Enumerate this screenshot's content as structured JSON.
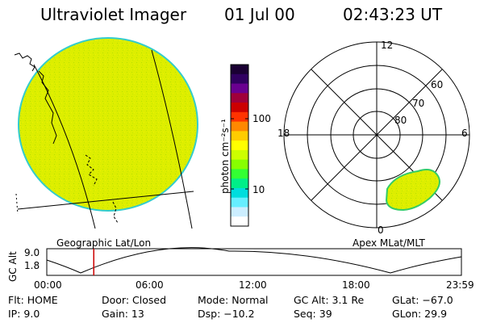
{
  "header": {
    "title": "Ultraviolet Imager",
    "date": "01 Jul 00",
    "time": "02:43:23 UT"
  },
  "colors": {
    "fill": "#ddee00",
    "fill_edge": "#33cccc",
    "aurora_edge": "#33cc66"
  },
  "colorbar": {
    "label": "photon cm⁻²s⁻¹",
    "scale": "log",
    "ticks": [
      "100",
      "10"
    ],
    "colors": [
      "#1a0033",
      "#300060",
      "#6a0090",
      "#a0003a",
      "#cc0000",
      "#ff3300",
      "#ff8800",
      "#ffcc00",
      "#ffff00",
      "#ccff00",
      "#88ff00",
      "#33ff33",
      "#00ee88",
      "#00dddd",
      "#66eeff",
      "#cceeff",
      "#ffffff"
    ]
  },
  "geo_panel": {
    "caption": "Geographic Lat/Lon"
  },
  "polar_panel": {
    "caption": "Apex MLat/MLT",
    "mlt_labels": {
      "top": "12",
      "left": "18",
      "right": "6",
      "bottom": "0"
    },
    "lat_labels": [
      "60",
      "70",
      "80"
    ]
  },
  "altitude": {
    "axis_label": "GC Alt",
    "ticks": [
      "9.0",
      "1.8"
    ],
    "time_ticks": [
      "00:00",
      "06:00",
      "12:00",
      "18:00",
      "23:59"
    ],
    "current_time_hours": 2.72
  },
  "status": {
    "flt": "Flt: HOME",
    "ip": "IP:  9.0",
    "door": "Door: Closed",
    "gain": "Gain: 13",
    "mode": "Mode: Normal",
    "dsp": "Dsp:  −10.2",
    "gc_alt": "GC Alt: 3.1 Re",
    "seq": "Seq: 39",
    "glat": "GLat: −67.0",
    "glon": "GLon:  29.9"
  }
}
